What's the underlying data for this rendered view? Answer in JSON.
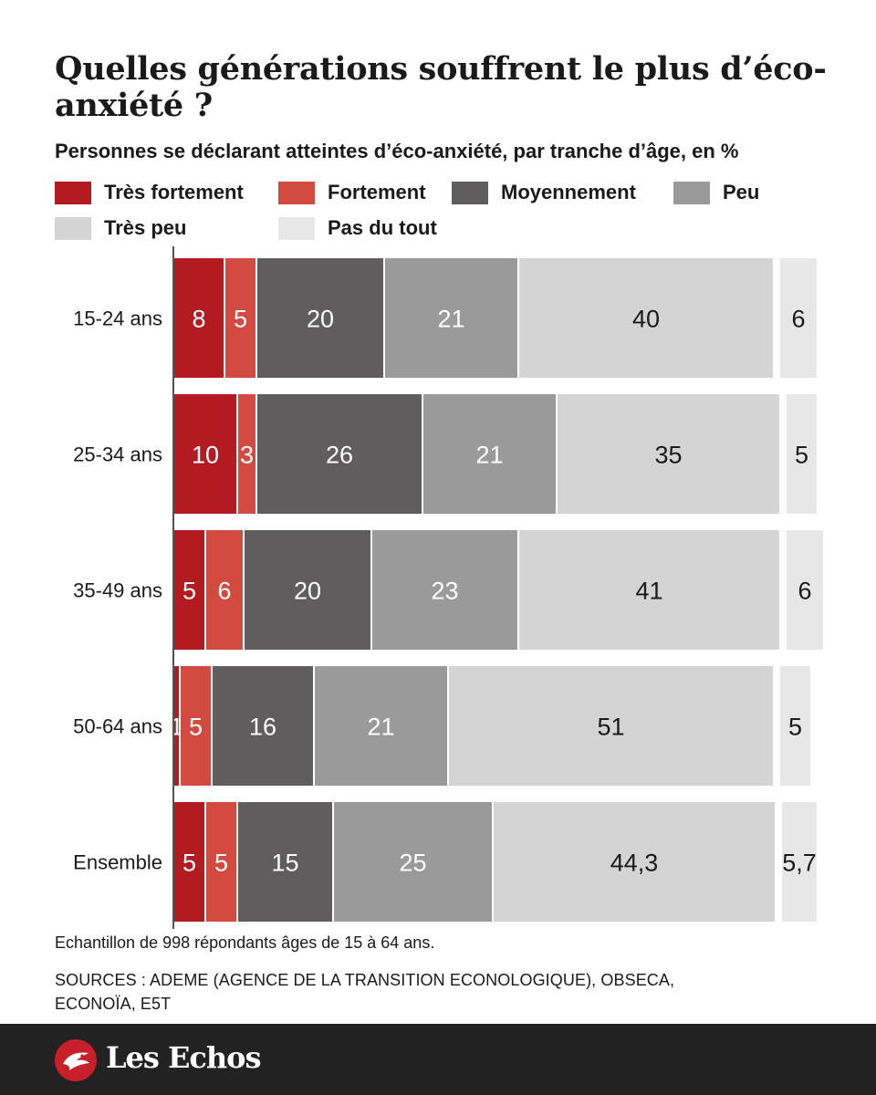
{
  "header": {
    "title": "Quelles générations souffrent le plus d’éco-anxiété ?",
    "subtitle": "Personnes se déclarant atteintes d’éco-anxiété, par tranche d’âge, en %"
  },
  "legend": [
    {
      "label": "Très fortement",
      "color": "#b31b21"
    },
    {
      "label": "Fortement",
      "color": "#d24a40"
    },
    {
      "label": "Moyennement",
      "color": "#5f5d5e"
    },
    {
      "label": "Peu",
      "color": "#9a9a9a"
    },
    {
      "label": "Très peu",
      "color": "#d4d4d4"
    },
    {
      "label": "Pas du tout",
      "color": "#e7e7e7"
    }
  ],
  "chart_data": {
    "type": "bar",
    "orientation": "horizontal",
    "stacked": true,
    "categories": [
      "15-24 ans",
      "25-34 ans",
      "35-49 ans",
      "50-64 ans",
      "Ensemble"
    ],
    "series": [
      {
        "name": "Très fortement",
        "color": "#b31b21",
        "values": [
          8,
          10,
          5,
          1,
          5
        ],
        "labels": [
          "8",
          "10",
          "5",
          "1",
          "5"
        ]
      },
      {
        "name": "Fortement",
        "color": "#d24a40",
        "values": [
          5,
          3,
          6,
          5,
          5
        ],
        "labels": [
          "5",
          "3",
          "6",
          "5",
          "5"
        ]
      },
      {
        "name": "Moyennement",
        "color": "#5f5d5e",
        "values": [
          20,
          26,
          20,
          16,
          15
        ],
        "labels": [
          "20",
          "26",
          "20",
          "16",
          "15"
        ]
      },
      {
        "name": "Peu",
        "color": "#9a9a9a",
        "values": [
          21,
          21,
          23,
          21,
          25
        ],
        "labels": [
          "21",
          "21",
          "23",
          "21",
          "25"
        ]
      },
      {
        "name": "Très peu",
        "color": "#d4d4d4",
        "values": [
          40,
          35,
          41,
          51,
          44.3
        ],
        "labels": [
          "40",
          "35",
          "41",
          "51",
          "44,3"
        ]
      },
      {
        "name": "Pas du tout",
        "color": "#e7e7e7",
        "values": [
          6,
          5,
          6,
          5,
          5.7
        ],
        "labels": [
          "6",
          "5",
          "6",
          "5",
          "5,7"
        ]
      }
    ],
    "xlim": [
      0,
      100
    ],
    "grid": false,
    "legend_position": "top"
  },
  "footer": {
    "note": "Echantillon de 998 répondants âges de 15 à 64 ans.",
    "sources_line1": "SOURCES : ADEME (AGENCE DE LA TRANSITION ECONOLOGIQUE), OBSECA,",
    "sources_line2": "ECONOÏA, E5T",
    "brand": "Les Echos"
  }
}
